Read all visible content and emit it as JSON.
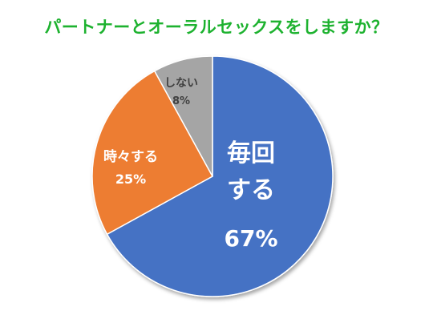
{
  "chart_data": {
    "type": "pie",
    "title": "パートナーとオーラルセックスをしますか？",
    "slices": [
      {
        "label_lines": [
          "毎回",
          "する"
        ],
        "percent_label": "67%",
        "value": 67
      },
      {
        "label_lines": [
          "時々する"
        ],
        "percent_label": "25%",
        "value": 25
      },
      {
        "label_lines": [
          "しない"
        ],
        "percent_label": "8%",
        "value": 8
      }
    ],
    "colors": [
      "#4472C4",
      "#ED7D31",
      "#A5A5A5"
    ],
    "title_color": "#1DB22F",
    "start": "12 o'clock, clockwise",
    "legend": "none"
  }
}
